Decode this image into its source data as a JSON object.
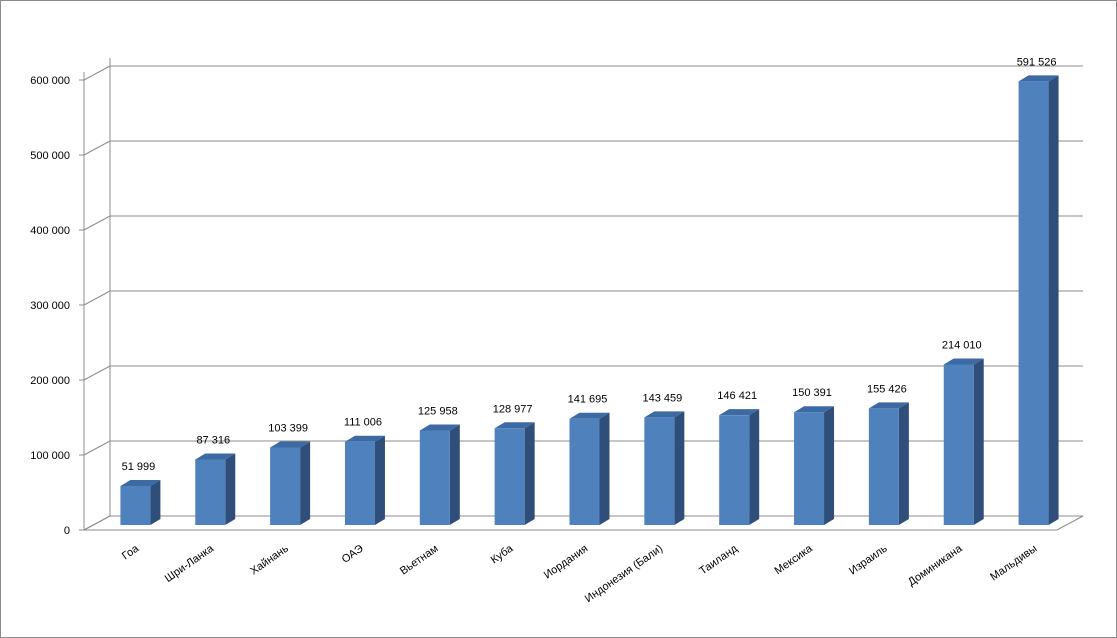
{
  "chart_data": {
    "type": "bar",
    "style": "3d-column",
    "categories": [
      "Гоа",
      "Шри-Ланка",
      "Хайнань",
      "ОАЭ",
      "Вьетнам",
      "Куба",
      "Иордания",
      "Индонезия (Бали)",
      "Таиланд",
      "Мексика",
      "Израиль",
      "Доминикана",
      "Мальдивы"
    ],
    "values": [
      51999,
      87316,
      103399,
      111006,
      125958,
      128977,
      141695,
      143459,
      146421,
      150391,
      155426,
      214010,
      591526
    ],
    "value_labels": [
      "51 999",
      "87 316",
      "103 399",
      "111 006",
      "125 958",
      "128 977",
      "141 695",
      "143 459",
      "146 421",
      "150 391",
      "155 426",
      "214 010",
      "591 526"
    ],
    "yticks": [
      0,
      100000,
      200000,
      300000,
      400000,
      500000,
      600000
    ],
    "ytick_labels": [
      "0",
      "100 000",
      "200 000",
      "300 000",
      "400 000",
      "500 000",
      "600 000"
    ],
    "ylim": [
      0,
      600000
    ],
    "title": "",
    "xlabel": "",
    "ylabel": "",
    "grid": true,
    "legend": "none",
    "colors": {
      "bar_front": "#4f81bd",
      "bar_side": "#2f4f7a",
      "bar_top": "#3d6aa3",
      "grid": "#8c8c8c",
      "axis": "#8c8c8c",
      "text": "#000000"
    }
  }
}
